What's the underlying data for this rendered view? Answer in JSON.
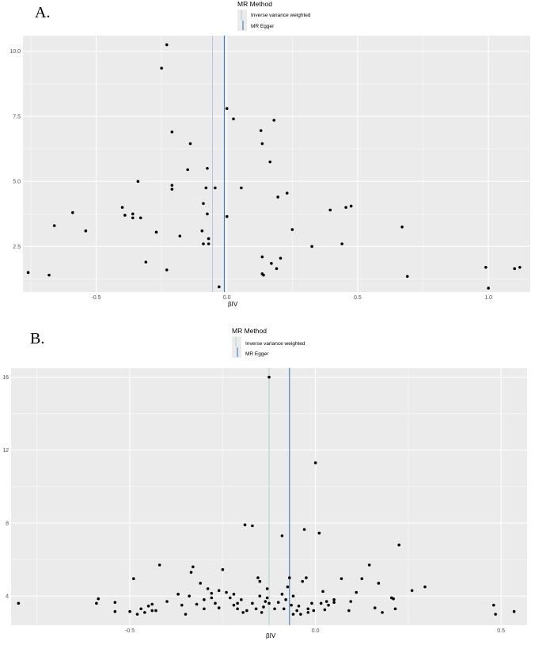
{
  "chart_data": [
    {
      "panel": "A.",
      "type": "scatter",
      "xlabel": "βIV",
      "ylabel": "",
      "xlim": [
        -0.78,
        1.16
      ],
      "ylim": [
        0.75,
        10.6
      ],
      "x_ticks": [
        -0.5,
        0.0,
        0.5,
        1.0
      ],
      "x_tick_labels": [
        "-0.5",
        "0.0",
        "0.5",
        "1.0"
      ],
      "y_ticks": [
        2.5,
        5.0,
        7.5,
        10.0
      ],
      "y_tick_labels": [
        "2.5",
        "5.0",
        "7.5",
        "10.0"
      ],
      "grid": true,
      "legend": {
        "title": "MR Method",
        "position": "top",
        "entries": [
          {
            "label": "Inverse variance weighted",
            "color": "#a8c8e0"
          },
          {
            "label": "MR Egger",
            "color": "#2e6fb7"
          }
        ]
      },
      "lines": [
        {
          "method": "Inverse variance weighted",
          "x": -0.055,
          "color": "#a8c8e0"
        },
        {
          "method": "MR Egger",
          "x": -0.01,
          "color": "#2e6fb7"
        }
      ],
      "points": [
        {
          "x": -0.76,
          "y": 1.5
        },
        {
          "x": -0.68,
          "y": 1.4
        },
        {
          "x": -0.66,
          "y": 3.3
        },
        {
          "x": -0.59,
          "y": 3.8
        },
        {
          "x": -0.54,
          "y": 3.1
        },
        {
          "x": -0.4,
          "y": 4.0
        },
        {
          "x": -0.39,
          "y": 3.7
        },
        {
          "x": -0.36,
          "y": 3.6
        },
        {
          "x": -0.36,
          "y": 3.75
        },
        {
          "x": -0.34,
          "y": 5.0
        },
        {
          "x": -0.33,
          "y": 3.6
        },
        {
          "x": -0.31,
          "y": 1.9
        },
        {
          "x": -0.27,
          "y": 3.05
        },
        {
          "x": -0.25,
          "y": 9.35
        },
        {
          "x": -0.23,
          "y": 10.25
        },
        {
          "x": -0.23,
          "y": 1.6
        },
        {
          "x": -0.21,
          "y": 6.9
        },
        {
          "x": -0.21,
          "y": 4.85
        },
        {
          "x": -0.21,
          "y": 4.7
        },
        {
          "x": -0.18,
          "y": 2.9
        },
        {
          "x": -0.15,
          "y": 5.45
        },
        {
          "x": -0.14,
          "y": 6.45
        },
        {
          "x": -0.095,
          "y": 3.1
        },
        {
          "x": -0.09,
          "y": 2.6
        },
        {
          "x": -0.09,
          "y": 4.15
        },
        {
          "x": -0.08,
          "y": 4.75
        },
        {
          "x": -0.075,
          "y": 5.5
        },
        {
          "x": -0.075,
          "y": 3.75
        },
        {
          "x": -0.07,
          "y": 2.8
        },
        {
          "x": -0.07,
          "y": 2.6
        },
        {
          "x": -0.045,
          "y": 4.75
        },
        {
          "x": -0.03,
          "y": 0.95
        },
        {
          "x": 0.0,
          "y": 7.8
        },
        {
          "x": 0.0,
          "y": 3.65
        },
        {
          "x": 0.025,
          "y": 7.4
        },
        {
          "x": 0.055,
          "y": 4.75
        },
        {
          "x": 0.13,
          "y": 6.95
        },
        {
          "x": 0.135,
          "y": 6.45
        },
        {
          "x": 0.135,
          "y": 2.1
        },
        {
          "x": 0.135,
          "y": 1.45
        },
        {
          "x": 0.14,
          "y": 1.4
        },
        {
          "x": 0.165,
          "y": 5.75
        },
        {
          "x": 0.17,
          "y": 1.85
        },
        {
          "x": 0.18,
          "y": 7.35
        },
        {
          "x": 0.19,
          "y": 1.65
        },
        {
          "x": 0.195,
          "y": 4.4
        },
        {
          "x": 0.205,
          "y": 2.05
        },
        {
          "x": 0.23,
          "y": 4.55
        },
        {
          "x": 0.25,
          "y": 3.15
        },
        {
          "x": 0.325,
          "y": 2.5
        },
        {
          "x": 0.395,
          "y": 3.9
        },
        {
          "x": 0.44,
          "y": 2.6
        },
        {
          "x": 0.455,
          "y": 4.0
        },
        {
          "x": 0.475,
          "y": 4.05
        },
        {
          "x": 0.67,
          "y": 3.25
        },
        {
          "x": 0.69,
          "y": 1.35
        },
        {
          "x": 0.99,
          "y": 1.7
        },
        {
          "x": 1.0,
          "y": 0.9
        },
        {
          "x": 1.1,
          "y": 1.65
        },
        {
          "x": 1.12,
          "y": 1.7
        }
      ]
    },
    {
      "panel": "B.",
      "type": "scatter",
      "xlabel": "βIV",
      "ylabel": "",
      "xlim": [
        -0.82,
        0.57
      ],
      "ylim": [
        2.4,
        16.5
      ],
      "x_ticks": [
        -0.5,
        0.0,
        0.5
      ],
      "x_tick_labels": [
        "-0.5",
        "0.0",
        "0.5"
      ],
      "y_ticks": [
        4,
        8,
        12,
        16
      ],
      "y_tick_labels": [
        "4",
        "8",
        "12",
        "16"
      ],
      "grid": true,
      "legend": {
        "title": "MR Method",
        "position": "top",
        "entries": [
          {
            "label": "Inverse variance weighted",
            "color": "#a8d8cf"
          },
          {
            "label": "MR Egger",
            "color": "#2e6fb7"
          }
        ]
      },
      "lines": [
        {
          "method": "Inverse variance weighted",
          "x": -0.125,
          "color": "#a8d8cf"
        },
        {
          "method": "MR Egger",
          "x": -0.07,
          "color": "#2e6fb7"
        }
      ],
      "points": [
        {
          "x": -0.8,
          "y": 3.6
        },
        {
          "x": -0.59,
          "y": 3.6
        },
        {
          "x": -0.585,
          "y": 3.85
        },
        {
          "x": -0.54,
          "y": 3.65
        },
        {
          "x": -0.54,
          "y": 3.15
        },
        {
          "x": -0.5,
          "y": 3.15
        },
        {
          "x": -0.49,
          "y": 4.95
        },
        {
          "x": -0.48,
          "y": 3.0
        },
        {
          "x": -0.47,
          "y": 3.3
        },
        {
          "x": -0.46,
          "y": 3.1
        },
        {
          "x": -0.45,
          "y": 3.45
        },
        {
          "x": -0.44,
          "y": 3.2
        },
        {
          "x": -0.44,
          "y": 3.55
        },
        {
          "x": -0.43,
          "y": 3.2
        },
        {
          "x": -0.42,
          "y": 5.7
        },
        {
          "x": -0.4,
          "y": 3.7
        },
        {
          "x": -0.37,
          "y": 4.1
        },
        {
          "x": -0.36,
          "y": 3.5
        },
        {
          "x": -0.35,
          "y": 3.0
        },
        {
          "x": -0.34,
          "y": 4.0
        },
        {
          "x": -0.335,
          "y": 5.3
        },
        {
          "x": -0.33,
          "y": 5.6
        },
        {
          "x": -0.32,
          "y": 3.55
        },
        {
          "x": -0.31,
          "y": 4.7
        },
        {
          "x": -0.3,
          "y": 3.8
        },
        {
          "x": -0.3,
          "y": 3.3
        },
        {
          "x": -0.29,
          "y": 4.4
        },
        {
          "x": -0.28,
          "y": 4.15
        },
        {
          "x": -0.28,
          "y": 3.9
        },
        {
          "x": -0.27,
          "y": 3.6
        },
        {
          "x": -0.26,
          "y": 4.3
        },
        {
          "x": -0.26,
          "y": 3.35
        },
        {
          "x": -0.25,
          "y": 5.45
        },
        {
          "x": -0.24,
          "y": 4.2
        },
        {
          "x": -0.23,
          "y": 3.9
        },
        {
          "x": -0.22,
          "y": 4.1
        },
        {
          "x": -0.22,
          "y": 3.5
        },
        {
          "x": -0.21,
          "y": 3.6
        },
        {
          "x": -0.21,
          "y": 3.3
        },
        {
          "x": -0.2,
          "y": 3.8
        },
        {
          "x": -0.195,
          "y": 3.1
        },
        {
          "x": -0.19,
          "y": 7.9
        },
        {
          "x": -0.185,
          "y": 3.2
        },
        {
          "x": -0.17,
          "y": 7.85
        },
        {
          "x": -0.17,
          "y": 3.6
        },
        {
          "x": -0.16,
          "y": 3.3
        },
        {
          "x": -0.155,
          "y": 5.0
        },
        {
          "x": -0.15,
          "y": 4.8
        },
        {
          "x": -0.15,
          "y": 4.0
        },
        {
          "x": -0.145,
          "y": 3.1
        },
        {
          "x": -0.14,
          "y": 3.4
        },
        {
          "x": -0.135,
          "y": 3.7
        },
        {
          "x": -0.13,
          "y": 4.4
        },
        {
          "x": -0.13,
          "y": 3.9
        },
        {
          "x": -0.125,
          "y": 3.6
        },
        {
          "x": -0.125,
          "y": 16.0
        },
        {
          "x": -0.11,
          "y": 3.3
        },
        {
          "x": -0.1,
          "y": 3.65
        },
        {
          "x": -0.09,
          "y": 4.1
        },
        {
          "x": -0.09,
          "y": 7.3
        },
        {
          "x": -0.085,
          "y": 3.3
        },
        {
          "x": -0.08,
          "y": 3.8
        },
        {
          "x": -0.075,
          "y": 4.5
        },
        {
          "x": -0.07,
          "y": 5.0
        },
        {
          "x": -0.065,
          "y": 3.5
        },
        {
          "x": -0.06,
          "y": 4.0
        },
        {
          "x": -0.06,
          "y": 3.0
        },
        {
          "x": -0.05,
          "y": 3.2
        },
        {
          "x": -0.045,
          "y": 3.45
        },
        {
          "x": -0.04,
          "y": 3.0
        },
        {
          "x": -0.035,
          "y": 4.8
        },
        {
          "x": -0.03,
          "y": 7.65
        },
        {
          "x": -0.025,
          "y": 5.0
        },
        {
          "x": -0.02,
          "y": 3.3
        },
        {
          "x": -0.02,
          "y": 3.1
        },
        {
          "x": -0.01,
          "y": 3.6
        },
        {
          "x": -0.005,
          "y": 3.2
        },
        {
          "x": 0.0,
          "y": 11.3
        },
        {
          "x": 0.01,
          "y": 7.45
        },
        {
          "x": 0.015,
          "y": 3.6
        },
        {
          "x": 0.02,
          "y": 4.25
        },
        {
          "x": 0.025,
          "y": 3.25
        },
        {
          "x": 0.03,
          "y": 3.7
        },
        {
          "x": 0.035,
          "y": 3.5
        },
        {
          "x": 0.05,
          "y": 3.8
        },
        {
          "x": 0.05,
          "y": 3.65
        },
        {
          "x": 0.07,
          "y": 4.95
        },
        {
          "x": 0.09,
          "y": 3.2
        },
        {
          "x": 0.095,
          "y": 3.7
        },
        {
          "x": 0.11,
          "y": 4.2
        },
        {
          "x": 0.125,
          "y": 4.95
        },
        {
          "x": 0.145,
          "y": 5.7
        },
        {
          "x": 0.16,
          "y": 3.35
        },
        {
          "x": 0.17,
          "y": 4.7
        },
        {
          "x": 0.18,
          "y": 3.1
        },
        {
          "x": 0.205,
          "y": 3.9
        },
        {
          "x": 0.21,
          "y": 3.85
        },
        {
          "x": 0.215,
          "y": 3.3
        },
        {
          "x": 0.225,
          "y": 6.8
        },
        {
          "x": 0.26,
          "y": 4.3
        },
        {
          "x": 0.295,
          "y": 4.5
        },
        {
          "x": 0.48,
          "y": 3.5
        },
        {
          "x": 0.485,
          "y": 3.0
        },
        {
          "x": 0.535,
          "y": 3.15
        }
      ]
    }
  ]
}
